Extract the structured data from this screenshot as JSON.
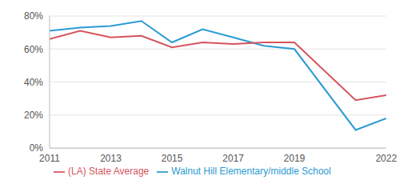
{
  "chart_data": {
    "type": "line",
    "x": [
      2011,
      2012,
      2013,
      2014,
      2015,
      2016,
      2017,
      2018,
      2019,
      2021,
      2022
    ],
    "series": [
      {
        "name": "Walnut Hill Elementary/middle School",
        "color": "#2b9bd3",
        "values": [
          71,
          73,
          74,
          77,
          64,
          72,
          67,
          62,
          60,
          11,
          18
        ]
      },
      {
        "name": "(LA) State Average",
        "color": "#d4545d",
        "values": [
          66,
          71,
          67,
          68,
          61,
          64,
          63,
          64,
          64,
          29,
          32
        ]
      }
    ],
    "xlim": [
      2011,
      2022
    ],
    "xticks": [
      2011,
      2013,
      2015,
      2017,
      2019,
      2022
    ],
    "ylim": [
      0,
      80
    ],
    "yticks": [
      {
        "value": 0,
        "label": "0%"
      },
      {
        "value": 20,
        "label": "20%"
      },
      {
        "value": 40,
        "label": "40%"
      },
      {
        "value": 60,
        "label": "60%"
      },
      {
        "value": 80,
        "label": "80%"
      }
    ],
    "grid": true,
    "legend": "bottom"
  }
}
